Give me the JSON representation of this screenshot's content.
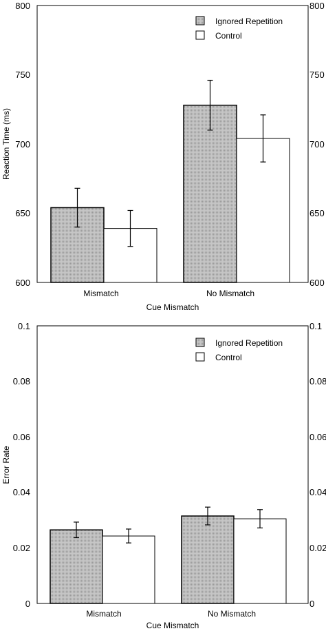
{
  "chart_data": [
    {
      "type": "bar",
      "xlabel": "Cue Mismatch",
      "ylabel": "Reaction Time (ms)",
      "ylim": [
        600,
        800
      ],
      "yticks": [
        "600",
        "650",
        "700",
        "750",
        "800"
      ],
      "categories": [
        "Mismatch",
        "No Mismatch"
      ],
      "legend_position": "top-right",
      "grid": false,
      "series": [
        {
          "name": "Ignored Repetition",
          "values": [
            654,
            728
          ],
          "err": [
            14,
            18
          ]
        },
        {
          "name": "Control",
          "values": [
            639,
            704
          ],
          "err": [
            13,
            17
          ]
        }
      ]
    },
    {
      "type": "bar",
      "xlabel": "Cue Mismatch",
      "ylabel": "Error Rate",
      "ylim": [
        0,
        0.1
      ],
      "yticks": [
        "0",
        "0.02",
        "0.04",
        "0.06",
        "0.08",
        "0.1"
      ],
      "categories": [
        "Mismatch",
        "No Mismatch"
      ],
      "legend_position": "top-right",
      "grid": false,
      "series": [
        {
          "name": "Ignored Repetition",
          "values": [
            0.0265,
            0.0315
          ],
          "err": [
            0.0028,
            0.0032
          ]
        },
        {
          "name": "Control",
          "values": [
            0.0243,
            0.0305
          ],
          "err": [
            0.0025,
            0.0033
          ]
        }
      ]
    }
  ],
  "colors": {
    "ignored_fill": "#c2c2c2",
    "control_fill": "#ffffff",
    "stroke": "#000000"
  }
}
